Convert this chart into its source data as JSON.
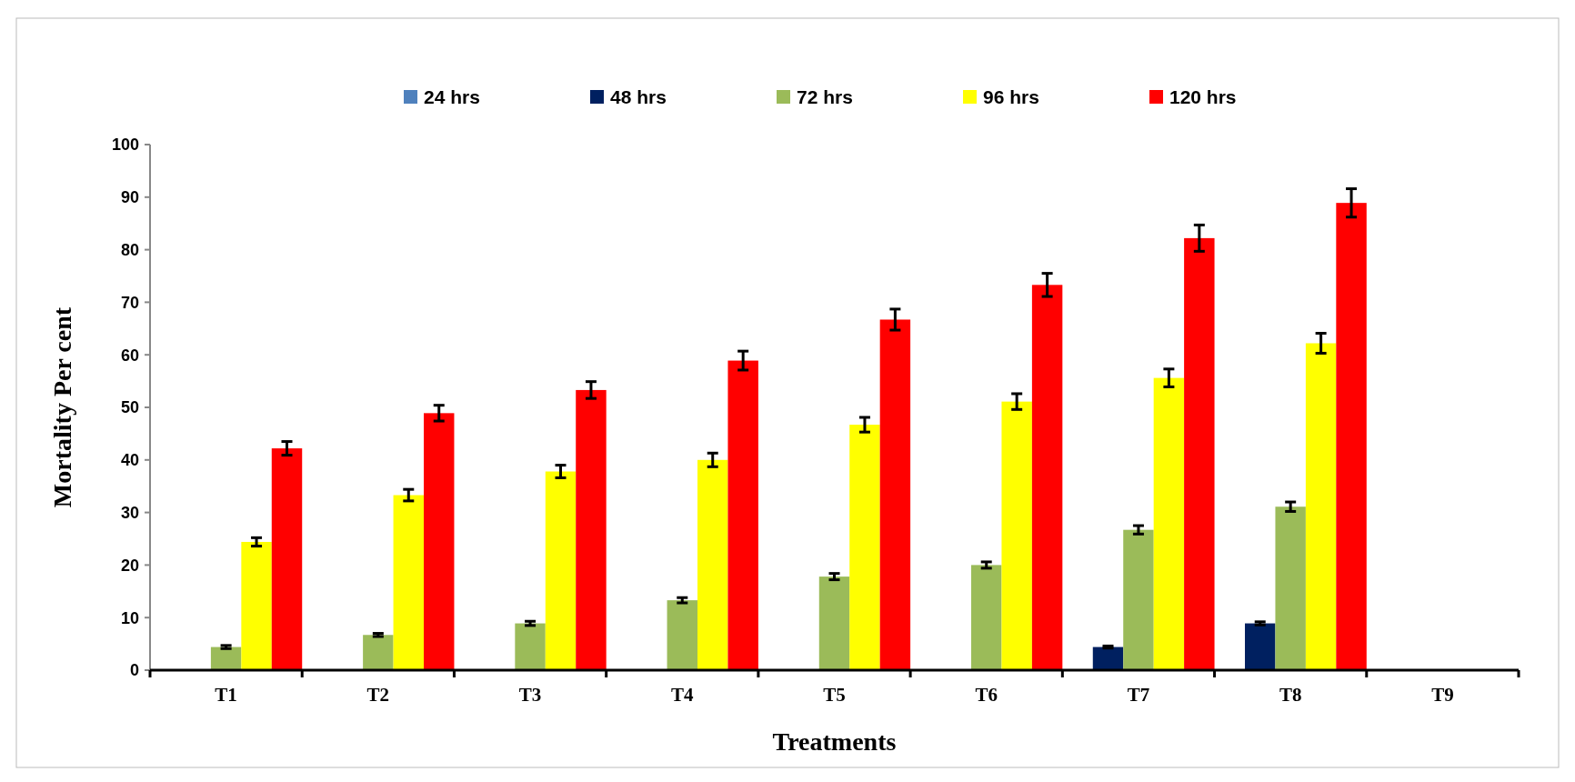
{
  "chart_data": {
    "type": "bar",
    "xlabel": "Treatments",
    "ylabel": "Mortality Per cent",
    "categories": [
      "T1",
      "T2",
      "T3",
      "T4",
      "T5",
      "T6",
      "T7",
      "T8",
      "T9"
    ],
    "ylim": [
      0,
      100
    ],
    "yticks": [
      0,
      10,
      20,
      30,
      40,
      50,
      60,
      70,
      80,
      90,
      100
    ],
    "legend": "top",
    "grid": false,
    "series": [
      {
        "name": "24 hrs",
        "color": "#4f81bd",
        "values": [
          0,
          0,
          0,
          0,
          0,
          0,
          0,
          0,
          0
        ]
      },
      {
        "name": "48 hrs",
        "color": "#002060",
        "values": [
          0,
          0,
          0,
          0,
          0,
          0,
          4.4,
          8.9,
          0
        ],
        "errors": [
          null,
          null,
          null,
          null,
          null,
          null,
          0.2,
          0.3,
          null
        ]
      },
      {
        "name": "72 hrs",
        "color": "#9bbb59",
        "values": [
          4.4,
          6.7,
          8.9,
          13.3,
          17.8,
          20,
          26.7,
          31.1,
          0
        ],
        "errors": [
          0.3,
          0.3,
          0.4,
          0.5,
          0.6,
          0.6,
          0.8,
          0.9,
          null
        ]
      },
      {
        "name": "96 hrs",
        "color": "#ffff00",
        "values": [
          24.4,
          33.3,
          37.8,
          40,
          46.7,
          51.1,
          55.6,
          62.2,
          0
        ],
        "errors": [
          0.8,
          1.1,
          1.2,
          1.3,
          1.4,
          1.5,
          1.7,
          1.9,
          null
        ]
      },
      {
        "name": "120 hrs",
        "color": "#ff0000",
        "values": [
          42.2,
          48.9,
          53.3,
          58.9,
          66.7,
          73.3,
          82.2,
          88.9,
          0
        ],
        "errors": [
          1.3,
          1.5,
          1.6,
          1.8,
          2,
          2.2,
          2.5,
          2.7,
          null
        ]
      }
    ]
  }
}
